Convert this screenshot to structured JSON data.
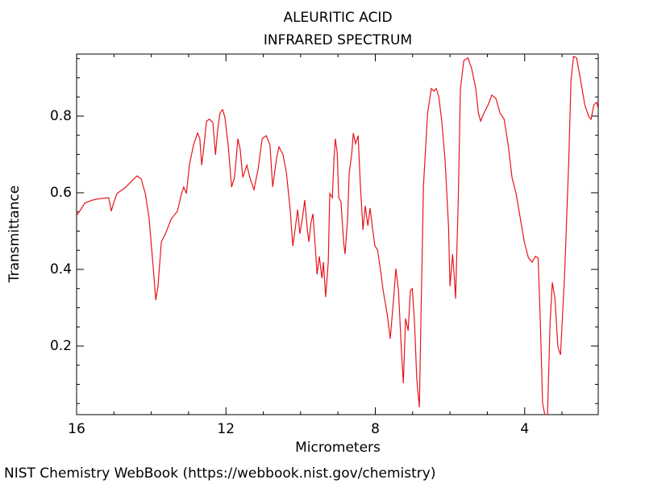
{
  "chart_data": {
    "type": "line",
    "title": "ALEURITIC ACID",
    "subtitle": "INFRARED SPECTRUM",
    "xlabel": "Micrometers",
    "ylabel": "Transmittance",
    "xlim": [
      16,
      2.03
    ],
    "ylim": [
      0.021,
      0.962
    ],
    "xticks": [
      16,
      12,
      8,
      4
    ],
    "yticks": [
      0.2,
      0.4,
      0.6,
      0.8
    ],
    "xminorticks": [
      15,
      14,
      13,
      11,
      10,
      9,
      7,
      6,
      5,
      3
    ],
    "yminorticks": [
      0.05,
      0.1,
      0.15,
      0.25,
      0.3,
      0.35,
      0.45,
      0.5,
      0.55,
      0.65,
      0.7,
      0.75,
      0.85,
      0.9,
      0.95
    ],
    "color": "#e8141c",
    "x": [
      16.0,
      15.89,
      15.78,
      15.57,
      15.35,
      15.14,
      15.07,
      15.03,
      14.92,
      14.7,
      14.49,
      14.38,
      14.27,
      14.16,
      14.06,
      13.95,
      13.88,
      13.82,
      13.73,
      13.62,
      13.47,
      13.3,
      13.19,
      13.13,
      13.06,
      12.98,
      12.87,
      12.76,
      12.7,
      12.65,
      12.61,
      12.52,
      12.44,
      12.35,
      12.28,
      12.22,
      12.16,
      12.09,
      12.03,
      11.94,
      11.85,
      11.77,
      11.68,
      11.62,
      11.55,
      11.44,
      11.36,
      11.25,
      11.14,
      11.03,
      10.92,
      10.82,
      10.75,
      10.64,
      10.58,
      10.47,
      10.38,
      10.28,
      10.21,
      10.15,
      10.08,
      10.02,
      9.95,
      9.89,
      9.82,
      9.78,
      9.72,
      9.67,
      9.61,
      9.56,
      9.5,
      9.43,
      9.39,
      9.33,
      9.26,
      9.22,
      9.15,
      9.11,
      9.07,
      9.02,
      8.98,
      8.92,
      8.85,
      8.81,
      8.74,
      8.7,
      8.63,
      8.59,
      8.53,
      8.46,
      8.4,
      8.33,
      8.27,
      8.2,
      8.14,
      8.07,
      8.01,
      7.94,
      7.86,
      7.79,
      7.68,
      7.6,
      7.51,
      7.45,
      7.38,
      7.3,
      7.25,
      7.19,
      7.12,
      7.06,
      7.01,
      6.95,
      6.89,
      6.82,
      6.78,
      6.71,
      6.6,
      6.5,
      6.43,
      6.37,
      6.3,
      6.22,
      6.13,
      6.04,
      6.0,
      5.93,
      5.89,
      5.85,
      5.78,
      5.72,
      5.63,
      5.52,
      5.42,
      5.31,
      5.24,
      5.18,
      5.09,
      4.98,
      4.88,
      4.77,
      4.66,
      4.55,
      4.44,
      4.34,
      4.23,
      4.12,
      4.01,
      3.9,
      3.8,
      3.71,
      3.64,
      3.58,
      3.52,
      3.45,
      3.39,
      3.32,
      3.26,
      3.19,
      3.11,
      3.04,
      2.93,
      2.82,
      2.76,
      2.69,
      2.61,
      2.5,
      2.39,
      2.28,
      2.22,
      2.15,
      2.07,
      2.03
    ],
    "values": [
      0.541,
      0.556,
      0.573,
      0.581,
      0.585,
      0.587,
      0.552,
      0.566,
      0.598,
      0.613,
      0.634,
      0.644,
      0.636,
      0.598,
      0.535,
      0.408,
      0.32,
      0.356,
      0.472,
      0.493,
      0.531,
      0.552,
      0.598,
      0.615,
      0.598,
      0.672,
      0.724,
      0.756,
      0.741,
      0.672,
      0.703,
      0.787,
      0.792,
      0.783,
      0.699,
      0.766,
      0.808,
      0.817,
      0.798,
      0.724,
      0.615,
      0.64,
      0.741,
      0.714,
      0.64,
      0.672,
      0.64,
      0.608,
      0.661,
      0.741,
      0.749,
      0.724,
      0.615,
      0.693,
      0.72,
      0.699,
      0.651,
      0.556,
      0.461,
      0.503,
      0.556,
      0.493,
      0.535,
      0.581,
      0.503,
      0.472,
      0.524,
      0.545,
      0.461,
      0.387,
      0.434,
      0.377,
      0.419,
      0.328,
      0.419,
      0.598,
      0.587,
      0.682,
      0.741,
      0.703,
      0.587,
      0.577,
      0.472,
      0.44,
      0.535,
      0.651,
      0.703,
      0.756,
      0.728,
      0.749,
      0.619,
      0.503,
      0.566,
      0.514,
      0.56,
      0.503,
      0.461,
      0.451,
      0.398,
      0.345,
      0.282,
      0.219,
      0.324,
      0.402,
      0.345,
      0.187,
      0.103,
      0.272,
      0.24,
      0.345,
      0.35,
      0.261,
      0.114,
      0.04,
      0.261,
      0.619,
      0.808,
      0.872,
      0.865,
      0.872,
      0.851,
      0.787,
      0.682,
      0.514,
      0.356,
      0.44,
      0.387,
      0.324,
      0.577,
      0.872,
      0.945,
      0.952,
      0.924,
      0.872,
      0.808,
      0.787,
      0.808,
      0.829,
      0.855,
      0.846,
      0.808,
      0.792,
      0.724,
      0.64,
      0.598,
      0.535,
      0.472,
      0.43,
      0.419,
      0.434,
      0.43,
      0.261,
      0.051,
      0.015,
      0.015,
      0.261,
      0.366,
      0.324,
      0.198,
      0.177,
      0.387,
      0.682,
      0.893,
      0.956,
      0.952,
      0.893,
      0.829,
      0.798,
      0.792,
      0.829,
      0.836,
      0.819
    ]
  },
  "footer": "NIST Chemistry WebBook (https://webbook.nist.gov/chemistry)"
}
